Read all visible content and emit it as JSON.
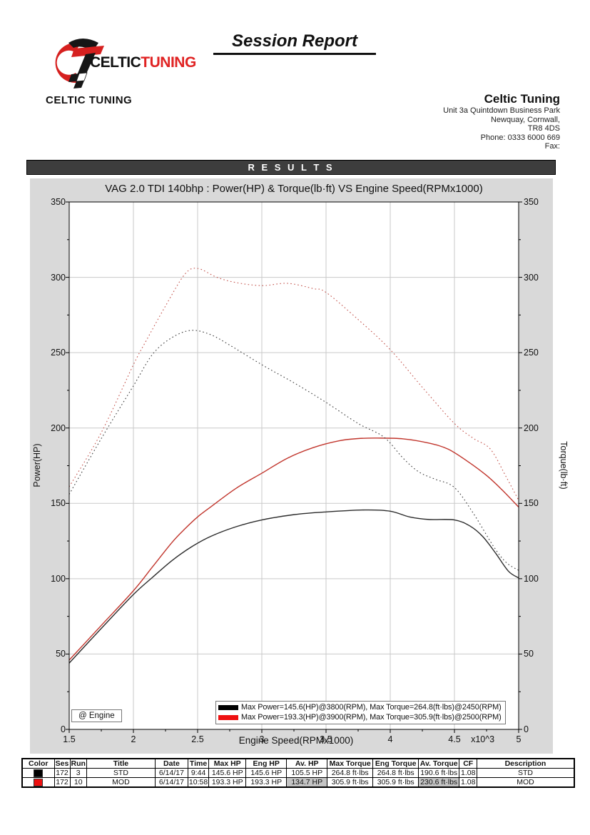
{
  "header": {
    "brand_celtic": "CELTIC",
    "brand_tuning": "TUNING",
    "report_title": "Session Report",
    "company_left": "CELTIC TUNING",
    "contact": {
      "name": "Celtic Tuning",
      "address_lines": [
        "Unit 3a Quintdown Business Park",
        "Newquay, Cornwall,",
        "TR8 4DS",
        "Phone: 0333 6000 669",
        "Fax:"
      ]
    }
  },
  "results_bar": {
    "label": "R E S U L T S"
  },
  "chart_data": {
    "type": "line",
    "title": "VAG 2.0 TDI 140bhp : Power(HP) & Torque(lb·ft) VS Engine Speed(RPMx1000)",
    "xlabel": "Engine Speed(RPMx1000)",
    "ylabel_left": "Power(HP)",
    "ylabel_right": "Torque(lb·ft)",
    "xlim": [
      1.5,
      5
    ],
    "ylim": [
      0,
      350
    ],
    "x_ticks": [
      1.5,
      2,
      2.5,
      3,
      3.5,
      4,
      4.5,
      5
    ],
    "x_minor_step": 0.25,
    "y_ticks": [
      0,
      50,
      100,
      150,
      200,
      250,
      300,
      350
    ],
    "y_minor_step": 25,
    "x_multiplier_label": "x10^3",
    "x_multiplier_pos": 4.72,
    "grid": true,
    "annotation": "@ Engine",
    "colors": {
      "grid": "#c9c9c9",
      "plot_border": "#000000",
      "chart_bg": "#d9d9d9"
    },
    "legend_position": "bottom-center",
    "legend": [
      {
        "color": "#000000",
        "label": "Max Power=145.6(HP)@3800(RPM), Max Torque=264.8(ft·lbs)@2450(RPM)"
      },
      {
        "color": "#ee1111",
        "label": "Max Power=193.3(HP)@3900(RPM), Max Torque=305.9(ft·lbs)@2500(RPM)"
      }
    ],
    "series": [
      {
        "name": "STD Power (HP)",
        "color": "#2b2b2b",
        "style": "solid",
        "points": [
          [
            1.5,
            44
          ],
          [
            1.75,
            67
          ],
          [
            2.0,
            89.5
          ],
          [
            2.15,
            101
          ],
          [
            2.3,
            112
          ],
          [
            2.45,
            121
          ],
          [
            2.6,
            128
          ],
          [
            2.8,
            134.5
          ],
          [
            3.0,
            139
          ],
          [
            3.25,
            142.5
          ],
          [
            3.5,
            144.3
          ],
          [
            3.8,
            145.6
          ],
          [
            4.0,
            144.8
          ],
          [
            4.15,
            141
          ],
          [
            4.3,
            139.3
          ],
          [
            4.5,
            139
          ],
          [
            4.62,
            135
          ],
          [
            4.72,
            128
          ],
          [
            4.82,
            117
          ],
          [
            4.92,
            105
          ],
          [
            5.0,
            100.5
          ]
        ]
      },
      {
        "name": "MOD Power (HP)",
        "color": "#c1352c",
        "style": "solid",
        "points": [
          [
            1.5,
            46
          ],
          [
            1.75,
            69
          ],
          [
            2.0,
            92
          ],
          [
            2.15,
            108
          ],
          [
            2.3,
            124
          ],
          [
            2.4,
            133
          ],
          [
            2.5,
            141
          ],
          [
            2.6,
            147.5
          ],
          [
            2.8,
            160
          ],
          [
            3.0,
            170
          ],
          [
            3.2,
            180
          ],
          [
            3.4,
            187
          ],
          [
            3.6,
            191.5
          ],
          [
            3.75,
            193
          ],
          [
            3.9,
            193.3
          ],
          [
            4.1,
            192.8
          ],
          [
            4.3,
            190
          ],
          [
            4.45,
            186
          ],
          [
            4.6,
            178
          ],
          [
            4.75,
            168.5
          ],
          [
            4.87,
            159
          ],
          [
            5.0,
            147.5
          ]
        ]
      },
      {
        "name": "STD Torque (ft·lbs)",
        "color": "#3c3c3c",
        "style": "dotted",
        "points": [
          [
            1.5,
            156
          ],
          [
            1.75,
            193
          ],
          [
            2.0,
            228
          ],
          [
            2.15,
            249
          ],
          [
            2.3,
            260
          ],
          [
            2.45,
            264.8
          ],
          [
            2.6,
            262
          ],
          [
            2.75,
            255
          ],
          [
            3.0,
            242
          ],
          [
            3.25,
            230
          ],
          [
            3.5,
            217
          ],
          [
            3.75,
            203
          ],
          [
            3.95,
            194
          ],
          [
            4.1,
            180
          ],
          [
            4.22,
            171
          ],
          [
            4.35,
            166
          ],
          [
            4.5,
            160.5
          ],
          [
            4.65,
            143
          ],
          [
            4.8,
            122
          ],
          [
            4.9,
            111
          ],
          [
            5.0,
            105.5
          ]
        ]
      },
      {
        "name": "MOD Torque (ft·lbs)",
        "color": "#c4554e",
        "style": "dotted",
        "points": [
          [
            1.5,
            161
          ],
          [
            1.75,
            197
          ],
          [
            2.0,
            242
          ],
          [
            2.1,
            258
          ],
          [
            2.25,
            281
          ],
          [
            2.4,
            302
          ],
          [
            2.5,
            305.9
          ],
          [
            2.65,
            300
          ],
          [
            2.8,
            296.5
          ],
          [
            3.0,
            294.5
          ],
          [
            3.2,
            296
          ],
          [
            3.4,
            292.5
          ],
          [
            3.5,
            290
          ],
          [
            3.75,
            272
          ],
          [
            4.0,
            252
          ],
          [
            4.25,
            227
          ],
          [
            4.5,
            203
          ],
          [
            4.65,
            193
          ],
          [
            4.78,
            186
          ],
          [
            4.9,
            168
          ],
          [
            5.0,
            152
          ]
        ]
      }
    ]
  },
  "table": {
    "headers": [
      "Color",
      "Ses",
      "Run",
      "Title",
      "Date",
      "Time",
      "Max HP",
      "Eng HP",
      "Av. HP",
      "Max Torque",
      "Eng Torque",
      "Av. Torque",
      "CF",
      "Description"
    ],
    "rows": [
      {
        "color": "#000000",
        "cells": [
          "",
          "172",
          "3",
          "STD",
          "6/14/17",
          "9:44",
          "145.6 HP",
          "145.6 HP",
          "105.5 HP",
          "264.8 ft·lbs",
          "264.8 ft·lbs",
          "190.6 ft·lbs",
          "1.08",
          "STD"
        ],
        "highlight": []
      },
      {
        "color": "#ee1111",
        "cells": [
          "",
          "172",
          "10",
          "MOD",
          "6/14/17",
          "10:58",
          "193.3 HP",
          "193.3 HP",
          "134.7 HP",
          "305.9 ft·lbs",
          "305.9 ft·lbs",
          "230.6 ft·lbs",
          "1.08",
          "MOD"
        ],
        "highlight": [
          8,
          11
        ]
      }
    ]
  }
}
